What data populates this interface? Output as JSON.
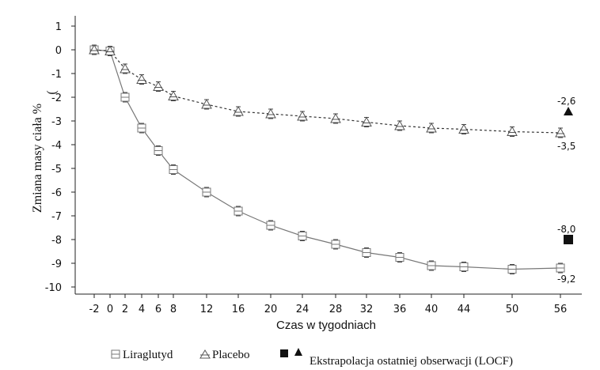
{
  "chart_data": {
    "type": "line",
    "xlabel": "Czas w tygodniach",
    "ylabel": "Zmiana masy ciała %",
    "ylabel_paren": "(",
    "x_ticks": [
      -2,
      0,
      2,
      4,
      6,
      8,
      12,
      16,
      20,
      24,
      28,
      32,
      36,
      40,
      44,
      50,
      56
    ],
    "y_ticks": [
      1,
      0,
      -1,
      -2,
      -3,
      -4,
      -5,
      -6,
      -7,
      -8,
      -9,
      -10
    ],
    "ylim": [
      -10.3,
      1
    ],
    "grid": false,
    "series": [
      {
        "name": "Liraglutyd",
        "marker": "square-open",
        "line_style": "solid",
        "color": "#777777",
        "x": [
          -2,
          0,
          2,
          4,
          6,
          8,
          12,
          16,
          20,
          24,
          28,
          32,
          36,
          40,
          44,
          50,
          56
        ],
        "y": [
          0.0,
          -0.05,
          -2.0,
          -3.3,
          -4.25,
          -5.05,
          -6.0,
          -6.8,
          -7.4,
          -7.85,
          -8.2,
          -8.55,
          -8.75,
          -9.1,
          -9.15,
          -9.25,
          -9.2
        ]
      },
      {
        "name": "Placebo",
        "marker": "triangle-open",
        "line_style": "dashed",
        "color": "#333333",
        "x": [
          -2,
          0,
          2,
          4,
          6,
          8,
          12,
          16,
          20,
          24,
          28,
          32,
          36,
          40,
          44,
          50,
          56
        ],
        "y": [
          0.0,
          -0.05,
          -0.8,
          -1.25,
          -1.55,
          -1.95,
          -2.3,
          -2.6,
          -2.7,
          -2.8,
          -2.9,
          -3.05,
          -3.2,
          -3.3,
          -3.35,
          -3.45,
          -3.5
        ]
      }
    ],
    "locf": [
      {
        "marker": "triangle-filled",
        "x": 57,
        "y": -2.6
      },
      {
        "marker": "square-filled",
        "x": 57,
        "y": -8.0
      }
    ],
    "annotations": [
      "-2,6",
      "-3,5",
      "-8,0",
      "-9,2"
    ],
    "legend": {
      "position": "bottom",
      "liraglutyd_label": "Liraglutyd",
      "placebo_label": "Placebo",
      "locf_label": "Ekstrapolacja ostatniej obserwacji  (LOCF)"
    }
  }
}
